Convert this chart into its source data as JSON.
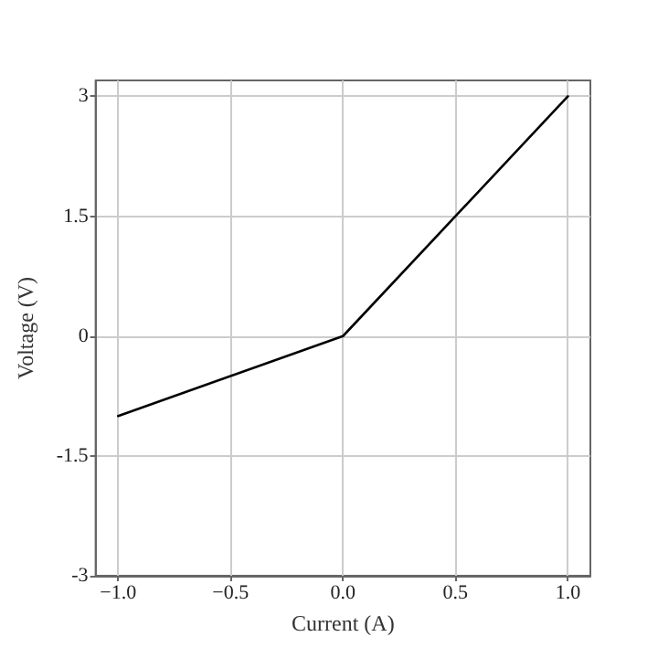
{
  "chart_data": {
    "type": "line",
    "xlabel": "Current (A)",
    "ylabel": "Voltage (V)",
    "x": [
      -1,
      0,
      1
    ],
    "series": [
      {
        "color": "#000000",
        "values": [
          -1,
          0,
          3
        ]
      }
    ],
    "xlim": [
      -1.1,
      1.1
    ],
    "ylim": [
      -3,
      3.2
    ],
    "xticks": [
      {
        "value": -1,
        "label": "−1.0"
      },
      {
        "value": -0.5,
        "label": "−0.5"
      },
      {
        "value": 0,
        "label": "0.0"
      },
      {
        "value": 0.5,
        "label": "0.5"
      },
      {
        "value": 1,
        "label": "1.0"
      }
    ],
    "yticks": [
      -3,
      -1.5,
      0,
      1.5,
      3
    ],
    "grid": true,
    "marker": "none",
    "line_style": "solid"
  }
}
